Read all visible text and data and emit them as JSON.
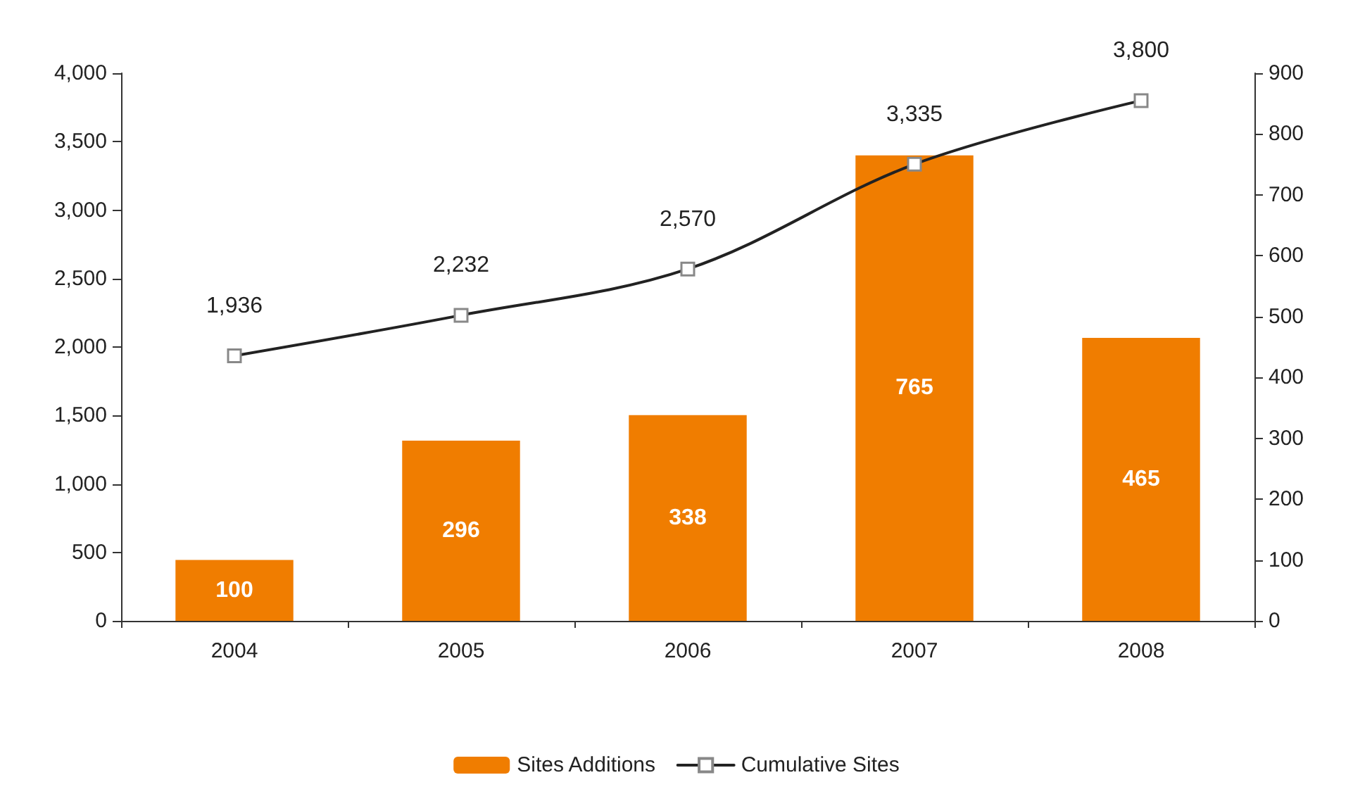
{
  "chart_data": {
    "type": "bar",
    "categories": [
      "2004",
      "2005",
      "2006",
      "2007",
      "2008"
    ],
    "series": [
      {
        "name": "Sites Additions",
        "axis": "y2",
        "color": "#f07d00",
        "values": [
          100,
          296,
          338,
          765,
          465
        ]
      },
      {
        "name": "Cumulative Sites",
        "type": "line",
        "axis": "y",
        "color": "#222222",
        "marker": "square",
        "values": [
          1936,
          2232,
          2570,
          3335,
          3800
        ],
        "value_labels": [
          "1,936",
          "2,232",
          "2,570",
          "3,335",
          "3,800"
        ]
      }
    ],
    "ylim": [
      0,
      4000
    ],
    "yticks": [
      0,
      500,
      {
        "value": 1000,
        "label": "1,000"
      },
      {
        "value": 1500,
        "label": "1,500"
      },
      {
        "value": 2000,
        "label": "2,000"
      },
      {
        "value": 2500,
        "label": "2,500"
      },
      {
        "value": 3000,
        "label": "3,000"
      },
      {
        "value": 3500,
        "label": "3,500"
      },
      {
        "value": 4000,
        "label": "4,000"
      }
    ],
    "y2lim": [
      0,
      900
    ],
    "y2ticks": [
      0,
      100,
      200,
      300,
      400,
      500,
      600,
      700,
      800,
      900
    ],
    "data_labels": true,
    "grid": false,
    "legend": "bottom"
  }
}
